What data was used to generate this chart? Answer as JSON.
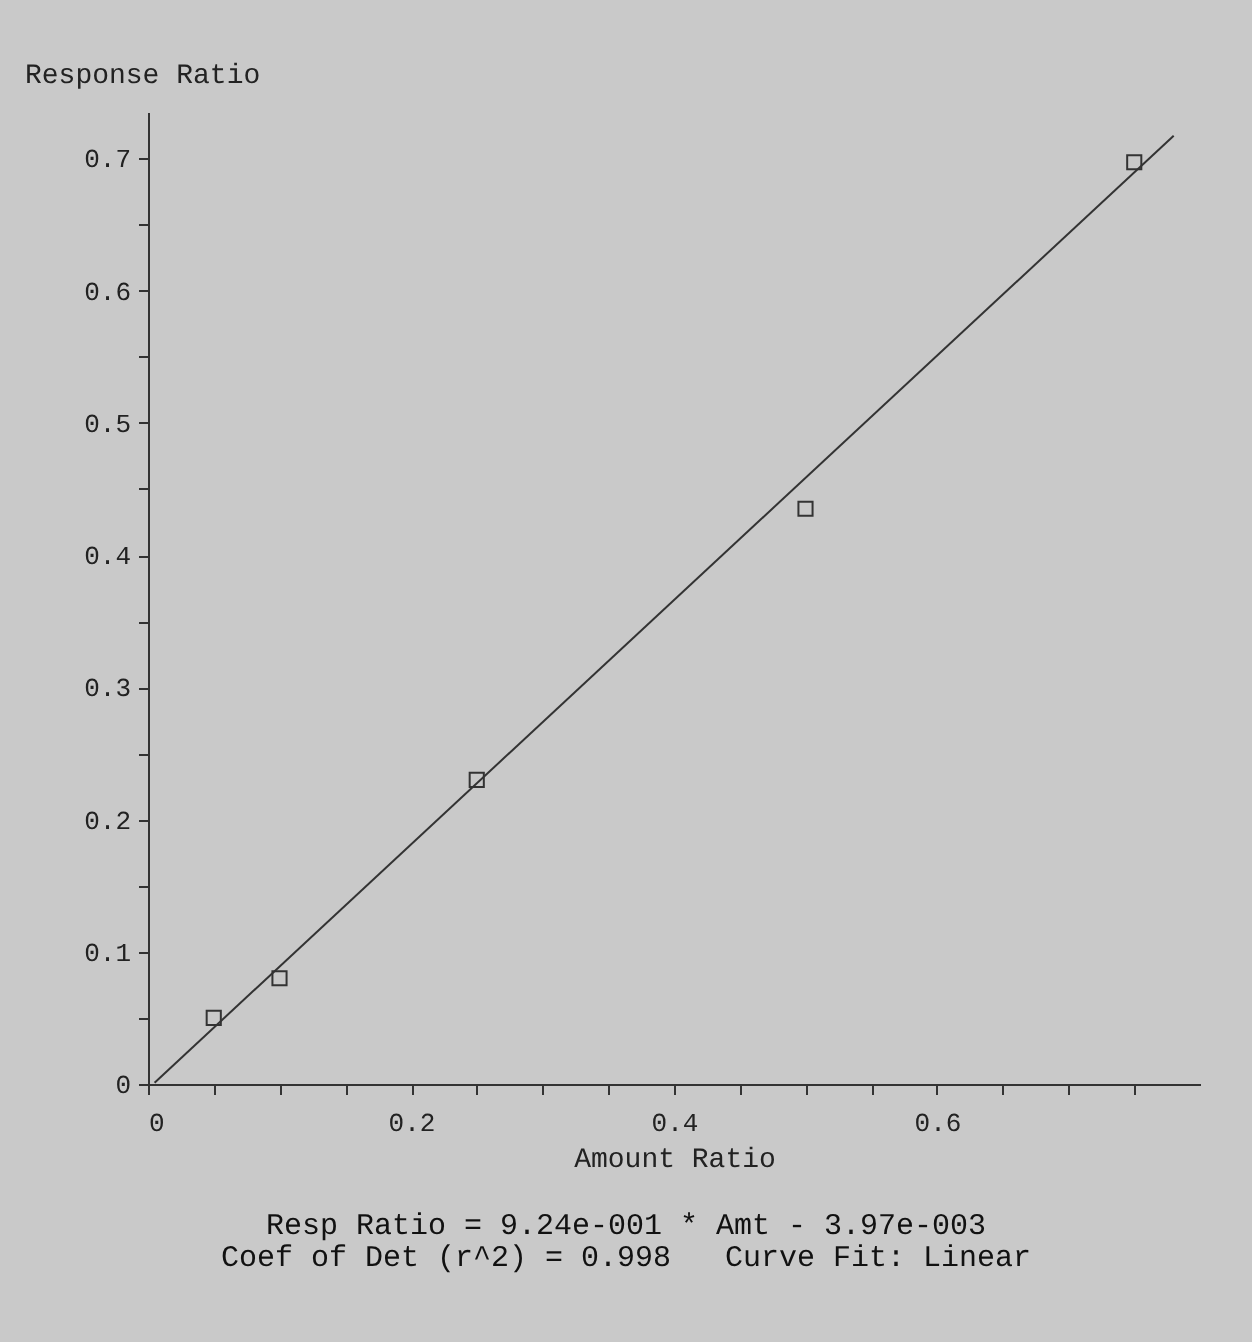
{
  "chart_data": {
    "type": "scatter",
    "xlabel": "Amount Ratio",
    "ylabel": "Response Ratio",
    "xlim": [
      0,
      0.8
    ],
    "ylim": [
      0,
      0.735
    ],
    "xticks": [
      0,
      {
        "value": 0.05,
        "label": null
      },
      {
        "value": 0.1,
        "label": null
      },
      {
        "value": 0.15,
        "label": null
      },
      0.2,
      {
        "value": 0.25,
        "label": null
      },
      {
        "value": 0.3,
        "label": null
      },
      {
        "value": 0.35,
        "label": null
      },
      0.4,
      {
        "value": 0.45,
        "label": null
      },
      {
        "value": 0.5,
        "label": null
      },
      {
        "value": 0.55,
        "label": null
      },
      0.6,
      {
        "value": 0.65,
        "label": null
      },
      {
        "value": 0.7,
        "label": null
      },
      {
        "value": 0.75,
        "label": null
      }
    ],
    "yticks": [
      0,
      {
        "value": 0.05,
        "label": null
      },
      0.1,
      {
        "value": 0.15,
        "label": null
      },
      0.2,
      {
        "value": 0.25,
        "label": null
      },
      0.3,
      {
        "value": 0.35,
        "label": null
      },
      0.4,
      {
        "value": 0.45,
        "label": null
      },
      0.5,
      {
        "value": 0.55,
        "label": null
      },
      0.6,
      {
        "value": 0.65,
        "label": null
      },
      0.7
    ],
    "grid": false,
    "marker": "square",
    "series": [
      {
        "color": "#333333",
        "x": [
          0.05,
          0.1,
          0.25,
          0.5,
          0.75
        ],
        "values": [
          0.05,
          0.08,
          0.23,
          0.435,
          0.697
        ]
      },
      {
        "type": "line",
        "color": "#333333",
        "line_style": "solid",
        "marker": "none",
        "x": [
          0.005,
          0.78
        ],
        "values": [
          0.001,
          0.717
        ]
      }
    ],
    "annotations": [
      "Resp Ratio = 9.24e-001 * Amt - 3.97e-003",
      "Coef of Det (r^2) = 0.998   Curve Fit: Linear"
    ]
  }
}
